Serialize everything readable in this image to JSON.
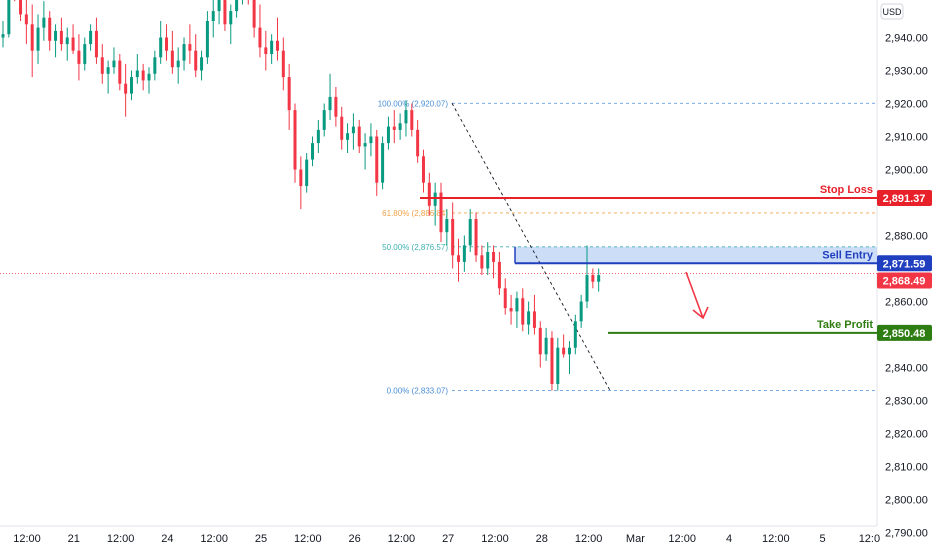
{
  "currency_label": "USD",
  "colors": {
    "up": "#089981",
    "down": "#f23645",
    "stop": "#e8202a",
    "entry": "#1f3fbf",
    "zone": "#bbd2f5",
    "take": "#2e7d12",
    "fib_top": "#4a8fd6",
    "fib_618": "#f0a34a",
    "fib_50": "#3fb0b0",
    "fib_0": "#4a8fd6",
    "arrow": "#f23645",
    "price_line": "#f23645"
  },
  "y_axis": {
    "ticks": [
      "2,940.00",
      "2,930.00",
      "2,920.00",
      "2,910.00",
      "2,900.00",
      "2,880.00",
      "2,860.00",
      "2,850.00",
      "2,840.00",
      "2,830.00",
      "2,820.00",
      "2,810.00",
      "2,800.00",
      "2,790.00"
    ]
  },
  "x_axis": {
    "ticks": [
      "12:00",
      "21",
      "12:00",
      "24",
      "12:00",
      "25",
      "12:00",
      "26",
      "12:00",
      "27",
      "12:00",
      "28",
      "12:00",
      "Mar",
      "12:00",
      "4",
      "12:00",
      "5",
      "12:0"
    ]
  },
  "fib_levels": [
    {
      "label": "100.00% (2,920.07)",
      "price": 2920.07,
      "color_key": "fib_top"
    },
    {
      "label": "61.80% (2,886.84)",
      "price": 2886.84,
      "color_key": "fib_618"
    },
    {
      "label": "50.00% (2,876.57)",
      "price": 2876.57,
      "color_key": "fib_50"
    },
    {
      "label": "0.00% (2,833.07)",
      "price": 2833.07,
      "color_key": "fib_0"
    }
  ],
  "levels": {
    "stop_loss": {
      "label": "Stop Loss",
      "value": "2,891.37",
      "price": 2891.37
    },
    "sell_entry": {
      "label": "Sell Entry",
      "value": "2,871.59",
      "price": 2871.59
    },
    "current": {
      "value": "2,868.49",
      "price": 2868.49
    },
    "take_profit": {
      "label": "Take Profit",
      "value": "2,850.48",
      "price": 2850.48
    }
  },
  "chart_data": {
    "type": "candlestick",
    "title": "",
    "ylim": [
      2787,
      2955
    ],
    "grid": false,
    "candles_ohlc": [
      [
        2940,
        2945,
        2937,
        2941
      ],
      [
        2941,
        2958,
        2940,
        2956
      ],
      [
        2956,
        2962,
        2951,
        2955
      ],
      [
        2955,
        2958,
        2945,
        2947
      ],
      [
        2947,
        2955,
        2938,
        2944
      ],
      [
        2944,
        2950,
        2928,
        2936
      ],
      [
        2936,
        2947,
        2932,
        2943
      ],
      [
        2943,
        2951,
        2939,
        2946
      ],
      [
        2946,
        2948,
        2936,
        2939
      ],
      [
        2939,
        2944,
        2934,
        2942
      ],
      [
        2942,
        2946,
        2936,
        2938
      ],
      [
        2938,
        2943,
        2933,
        2940
      ],
      [
        2940,
        2944,
        2935,
        2936
      ],
      [
        2936,
        2941,
        2927,
        2932
      ],
      [
        2932,
        2940,
        2930,
        2938
      ],
      [
        2938,
        2944,
        2936,
        2942
      ],
      [
        2942,
        2946,
        2932,
        2934
      ],
      [
        2934,
        2938,
        2926,
        2929
      ],
      [
        2929,
        2933,
        2923,
        2931
      ],
      [
        2931,
        2937,
        2929,
        2933
      ],
      [
        2933,
        2935,
        2924,
        2926
      ],
      [
        2926,
        2932,
        2916,
        2923
      ],
      [
        2923,
        2930,
        2921,
        2928
      ],
      [
        2928,
        2935,
        2926,
        2930
      ],
      [
        2930,
        2932,
        2924,
        2927
      ],
      [
        2927,
        2931,
        2923,
        2929
      ],
      [
        2929,
        2936,
        2927,
        2934
      ],
      [
        2934,
        2945,
        2932,
        2940
      ],
      [
        2940,
        2944,
        2933,
        2936
      ],
      [
        2936,
        2942,
        2929,
        2931
      ],
      [
        2931,
        2937,
        2926,
        2933
      ],
      [
        2933,
        2940,
        2930,
        2938
      ],
      [
        2938,
        2944,
        2932,
        2936
      ],
      [
        2936,
        2941,
        2928,
        2930
      ],
      [
        2930,
        2936,
        2927,
        2934
      ],
      [
        2934,
        2948,
        2932,
        2945
      ],
      [
        2945,
        2952,
        2940,
        2948
      ],
      [
        2948,
        2956,
        2944,
        2952
      ],
      [
        2952,
        2955,
        2942,
        2944
      ],
      [
        2944,
        2950,
        2938,
        2948
      ],
      [
        2948,
        2958,
        2946,
        2955
      ],
      [
        2955,
        2960,
        2950,
        2957
      ],
      [
        2957,
        2962,
        2950,
        2952
      ],
      [
        2952,
        2956,
        2940,
        2943
      ],
      [
        2943,
        2950,
        2934,
        2937
      ],
      [
        2937,
        2942,
        2930,
        2935
      ],
      [
        2935,
        2941,
        2932,
        2939
      ],
      [
        2939,
        2946,
        2933,
        2936
      ],
      [
        2936,
        2940,
        2924,
        2928
      ],
      [
        2928,
        2932,
        2912,
        2918
      ],
      [
        2918,
        2920,
        2896,
        2900
      ],
      [
        2900,
        2904,
        2888,
        2895
      ],
      [
        2895,
        2905,
        2893,
        2903
      ],
      [
        2903,
        2910,
        2901,
        2908
      ],
      [
        2908,
        2915,
        2905,
        2912
      ],
      [
        2912,
        2920,
        2910,
        2918
      ],
      [
        2918,
        2929,
        2915,
        2922
      ],
      [
        2922,
        2925,
        2913,
        2916
      ],
      [
        2916,
        2919,
        2906,
        2909
      ],
      [
        2909,
        2914,
        2905,
        2911
      ],
      [
        2911,
        2917,
        2906,
        2913
      ],
      [
        2913,
        2915,
        2905,
        2907
      ],
      [
        2907,
        2911,
        2900,
        2908
      ],
      [
        2908,
        2914,
        2904,
        2910
      ],
      [
        2910,
        2912,
        2892,
        2896
      ],
      [
        2896,
        2910,
        2894,
        2908
      ],
      [
        2908,
        2916,
        2906,
        2913
      ],
      [
        2913,
        2918,
        2908,
        2912
      ],
      [
        2912,
        2917,
        2909,
        2914
      ],
      [
        2914,
        2921,
        2910,
        2918
      ],
      [
        2918,
        2920,
        2910,
        2912
      ],
      [
        2912,
        2915,
        2902,
        2904
      ],
      [
        2904,
        2906,
        2893,
        2896
      ],
      [
        2896,
        2899,
        2886,
        2889
      ],
      [
        2889,
        2896,
        2883,
        2893
      ],
      [
        2893,
        2896,
        2878,
        2881
      ],
      [
        2881,
        2888,
        2877,
        2885
      ],
      [
        2885,
        2890,
        2870,
        2874
      ],
      [
        2874,
        2879,
        2866,
        2872
      ],
      [
        2872,
        2880,
        2869,
        2877
      ],
      [
        2877,
        2888,
        2875,
        2885
      ],
      [
        2885,
        2887,
        2872,
        2874
      ],
      [
        2874,
        2877,
        2868,
        2870
      ],
      [
        2870,
        2878,
        2868,
        2875
      ],
      [
        2875,
        2877,
        2867,
        2872
      ],
      [
        2872,
        2875,
        2862,
        2864
      ],
      [
        2864,
        2867,
        2856,
        2858
      ],
      [
        2858,
        2862,
        2853,
        2857
      ],
      [
        2857,
        2863,
        2852,
        2861
      ],
      [
        2861,
        2864,
        2851,
        2853
      ],
      [
        2853,
        2860,
        2850,
        2857
      ],
      [
        2857,
        2862,
        2850,
        2852
      ],
      [
        2852,
        2854,
        2840,
        2844
      ],
      [
        2844,
        2852,
        2842,
        2849
      ],
      [
        2849,
        2851,
        2833,
        2835
      ],
      [
        2835,
        2849,
        2833,
        2846
      ],
      [
        2846,
        2850,
        2843,
        2844
      ],
      [
        2844,
        2848,
        2838,
        2846
      ],
      [
        2846,
        2856,
        2844,
        2854
      ],
      [
        2854,
        2862,
        2852,
        2860
      ],
      [
        2860,
        2877,
        2858,
        2868
      ],
      [
        2868,
        2870,
        2864,
        2866
      ],
      [
        2866,
        2870,
        2863,
        2868
      ]
    ],
    "fibonacci": [
      {
        "ratio": "100.00%",
        "price": 2920.07
      },
      {
        "ratio": "61.80%",
        "price": 2886.84
      },
      {
        "ratio": "50.00%",
        "price": 2876.57
      },
      {
        "ratio": "0.00%",
        "price": 2833.07
      }
    ],
    "horizontal_levels": [
      {
        "name": "Stop Loss",
        "price": 2891.37
      },
      {
        "name": "Sell Entry",
        "price": 2871.59
      },
      {
        "name": "Take Profit",
        "price": 2850.48
      }
    ],
    "last_price": 2868.49
  }
}
